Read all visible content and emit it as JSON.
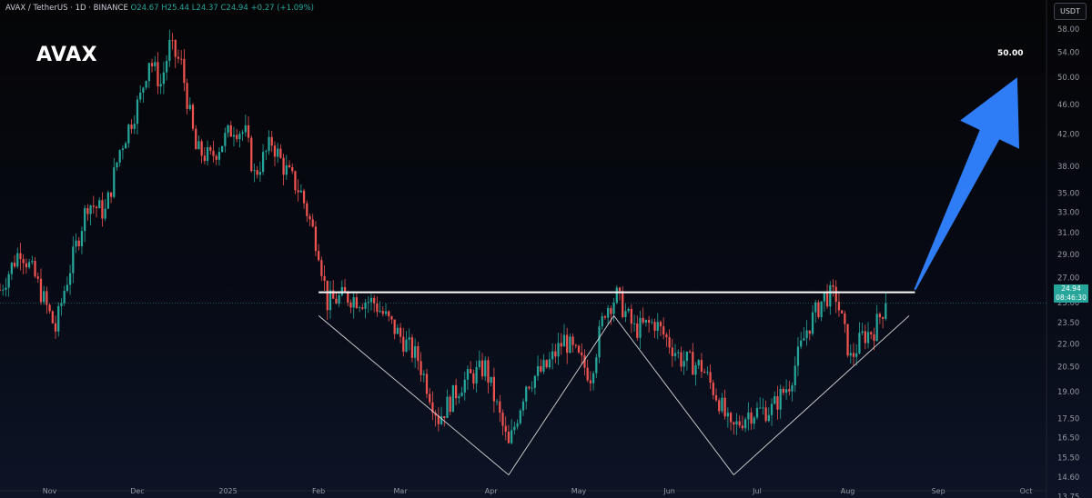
{
  "header": {
    "symbol_line": "AVAX / TetherUS · 1D · BINANCE",
    "open": "O24.67",
    "high": "H25.44",
    "low": "L24.37",
    "close": "C24.94",
    "change": "+0.27 (+1.09%)"
  },
  "ticker": "AVAX",
  "currency_button": "USDT",
  "target_label": "50.00",
  "last_price": {
    "value": "24.94",
    "countdown": "08:46:30"
  },
  "colors": {
    "up": "#26a69a",
    "down": "#ef5350",
    "arrow": "#2f7df6",
    "background": "#05070d"
  },
  "chart_data": {
    "type": "candlestick",
    "scale": "log",
    "ylim": [
      14.0,
      60.0
    ],
    "y_ticks": [
      "58.00",
      "54.00",
      "50.00",
      "46.00",
      "42.00",
      "38.00",
      "35.00",
      "33.00",
      "31.00",
      "29.00",
      "27.00",
      "25.00",
      "23.50",
      "22.00",
      "20.50",
      "19.00",
      "17.50",
      "16.50",
      "15.50",
      "14.60",
      "13.75"
    ],
    "x_ticks": [
      "Nov",
      "Dec",
      "2025",
      "Feb",
      "Mar",
      "Apr",
      "May",
      "Jun",
      "Jul",
      "Aug",
      "Sep",
      "Oct"
    ],
    "x_range": [
      "2024-10-15",
      "2025-10-08"
    ],
    "price_path": [
      [
        "2024-10-15",
        26.0
      ],
      [
        "2024-10-22",
        29.5
      ],
      [
        "2024-10-27",
        27.0
      ],
      [
        "2024-11-03",
        23.0
      ],
      [
        "2024-11-06",
        26.0
      ],
      [
        "2024-11-14",
        34.0
      ],
      [
        "2024-11-20",
        33.0
      ],
      [
        "2024-11-25",
        40.0
      ],
      [
        "2024-12-02",
        47.0
      ],
      [
        "2024-12-05",
        53.0
      ],
      [
        "2024-12-09",
        49.0
      ],
      [
        "2024-12-12",
        55.0
      ],
      [
        "2024-12-16",
        52.0
      ],
      [
        "2024-12-21",
        40.0
      ],
      [
        "2024-12-26",
        39.0
      ],
      [
        "2025-01-03",
        43.0
      ],
      [
        "2025-01-07",
        42.0
      ],
      [
        "2025-01-10",
        37.0
      ],
      [
        "2025-01-16",
        41.0
      ],
      [
        "2025-01-20",
        38.0
      ],
      [
        "2025-01-26",
        35.0
      ],
      [
        "2025-02-01",
        29.5
      ],
      [
        "2025-02-04",
        25.0
      ],
      [
        "2025-02-10",
        25.5
      ],
      [
        "2025-02-20",
        25.0
      ],
      [
        "2025-03-01",
        22.5
      ],
      [
        "2025-03-07",
        21.0
      ],
      [
        "2025-03-14",
        17.5
      ],
      [
        "2025-03-22",
        19.5
      ],
      [
        "2025-03-30",
        20.5
      ],
      [
        "2025-04-07",
        16.0
      ],
      [
        "2025-04-13",
        19.5
      ],
      [
        "2025-04-20",
        20.5
      ],
      [
        "2025-04-26",
        22.3
      ],
      [
        "2025-05-05",
        20.0
      ],
      [
        "2025-05-10",
        24.5
      ],
      [
        "2025-05-14",
        25.5
      ],
      [
        "2025-05-20",
        23.0
      ],
      [
        "2025-05-27",
        23.5
      ],
      [
        "2025-06-05",
        21.0
      ],
      [
        "2025-06-12",
        20.5
      ],
      [
        "2025-06-18",
        18.5
      ],
      [
        "2025-06-22",
        16.8
      ],
      [
        "2025-06-28",
        17.8
      ],
      [
        "2025-07-06",
        18.0
      ],
      [
        "2025-07-12",
        19.5
      ],
      [
        "2025-07-18",
        23.0
      ],
      [
        "2025-07-24",
        25.5
      ],
      [
        "2025-07-28",
        25.5
      ],
      [
        "2025-08-02",
        21.0
      ],
      [
        "2025-08-06",
        22.5
      ],
      [
        "2025-08-10",
        23.0
      ],
      [
        "2025-08-14",
        24.94
      ]
    ],
    "annotations": {
      "resistance": {
        "price": 25.8,
        "from": "2025-02-01",
        "to": "2025-08-24"
      },
      "pattern_lines": [
        [
          [
            "2025-02-01",
            24.0
          ],
          [
            "2025-04-07",
            14.7
          ]
        ],
        [
          [
            "2025-04-07",
            14.7
          ],
          [
            "2025-05-13",
            24.0
          ]
        ],
        [
          [
            "2025-05-13",
            24.0
          ],
          [
            "2025-06-23",
            14.7
          ]
        ],
        [
          [
            "2025-06-23",
            14.7
          ],
          [
            "2025-08-22",
            24.0
          ]
        ]
      ],
      "arrow": {
        "from": [
          "2025-08-24",
          26.0
        ],
        "to": [
          "2025-09-28",
          50.0
        ],
        "label": "50.00"
      }
    }
  }
}
